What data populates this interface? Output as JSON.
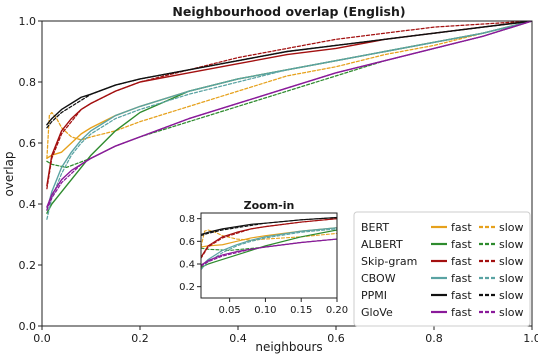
{
  "chart_data": [
    {
      "type": "line",
      "title": "Neighbourhood overlap (English)",
      "xlabel": "neighbours",
      "ylabel": "overlap",
      "xlim": [
        0.0,
        1.0
      ],
      "ylim": [
        0.0,
        1.0
      ],
      "x_ticks": [
        "0.0",
        "0.2",
        "0.4",
        "0.6",
        "0.8",
        "1.0"
      ],
      "y_ticks": [
        "0.0",
        "0.2",
        "0.4",
        "0.6",
        "0.8",
        "1.0"
      ],
      "grid": false,
      "legend_placement": "lower-right",
      "legend_variant_labels": {
        "fast": "fast",
        "slow": "slow"
      },
      "models": [
        {
          "name": "BERT",
          "color": "#e6a11c"
        },
        {
          "name": "ALBERT",
          "color": "#2e8b2e"
        },
        {
          "name": "Skip-gram",
          "color": "#a31010"
        },
        {
          "name": "CBOW",
          "color": "#5aa3a3"
        },
        {
          "name": "PPMI",
          "color": "#111111"
        },
        {
          "name": "GloVe",
          "color": "#8a1a9a"
        }
      ],
      "series": [
        {
          "model": "BERT",
          "variant": "fast",
          "x": [
            0.01,
            0.02,
            0.04,
            0.06,
            0.08,
            0.1,
            0.15,
            0.2,
            0.3,
            0.4,
            0.5,
            0.6,
            0.7,
            0.8,
            0.9,
            1.0
          ],
          "y": [
            0.55,
            0.56,
            0.57,
            0.6,
            0.63,
            0.65,
            0.69,
            0.72,
            0.77,
            0.81,
            0.84,
            0.87,
            0.9,
            0.93,
            0.96,
            1.0
          ]
        },
        {
          "model": "BERT",
          "variant": "slow",
          "x": [
            0.01,
            0.015,
            0.02,
            0.03,
            0.04,
            0.06,
            0.08,
            0.1,
            0.15,
            0.2,
            0.3,
            0.4,
            0.5,
            0.6,
            0.7,
            0.8,
            0.9,
            1.0
          ],
          "y": [
            0.55,
            0.69,
            0.7,
            0.68,
            0.65,
            0.62,
            0.61,
            0.62,
            0.64,
            0.67,
            0.72,
            0.77,
            0.82,
            0.85,
            0.89,
            0.92,
            0.96,
            1.0
          ]
        },
        {
          "model": "ALBERT",
          "variant": "fast",
          "x": [
            0.01,
            0.02,
            0.03,
            0.05,
            0.08,
            0.1,
            0.15,
            0.2,
            0.3,
            0.4,
            0.5,
            0.6,
            0.7,
            0.8,
            0.9,
            1.0
          ],
          "y": [
            0.37,
            0.4,
            0.42,
            0.46,
            0.52,
            0.56,
            0.64,
            0.7,
            0.77,
            0.81,
            0.84,
            0.87,
            0.9,
            0.93,
            0.96,
            1.0
          ]
        },
        {
          "model": "ALBERT",
          "variant": "slow",
          "x": [
            0.01,
            0.02,
            0.05,
            0.1,
            0.15,
            0.2,
            0.3,
            0.4,
            0.5,
            0.6,
            0.7,
            0.8,
            0.9,
            1.0
          ],
          "y": [
            0.54,
            0.53,
            0.52,
            0.55,
            0.59,
            0.62,
            0.67,
            0.72,
            0.77,
            0.82,
            0.87,
            0.91,
            0.95,
            1.0
          ]
        },
        {
          "model": "Skip-gram",
          "variant": "fast",
          "x": [
            0.01,
            0.02,
            0.04,
            0.06,
            0.08,
            0.1,
            0.15,
            0.2,
            0.3,
            0.4,
            0.5,
            0.6,
            0.7,
            0.8,
            0.9,
            1.0
          ],
          "y": [
            0.46,
            0.56,
            0.64,
            0.68,
            0.71,
            0.73,
            0.77,
            0.8,
            0.83,
            0.86,
            0.89,
            0.91,
            0.94,
            0.96,
            0.98,
            1.0
          ]
        },
        {
          "model": "Skip-gram",
          "variant": "slow",
          "x": [
            0.01,
            0.02,
            0.04,
            0.06,
            0.08,
            0.1,
            0.15,
            0.2,
            0.3,
            0.4,
            0.5,
            0.6,
            0.7,
            0.8,
            0.9,
            1.0
          ],
          "y": [
            0.45,
            0.55,
            0.63,
            0.67,
            0.71,
            0.73,
            0.77,
            0.8,
            0.84,
            0.88,
            0.91,
            0.94,
            0.96,
            0.98,
            0.99,
            1.0
          ]
        },
        {
          "model": "CBOW",
          "variant": "fast",
          "x": [
            0.01,
            0.02,
            0.04,
            0.06,
            0.08,
            0.1,
            0.15,
            0.2,
            0.3,
            0.4,
            0.5,
            0.6,
            0.7,
            0.8,
            0.9,
            1.0
          ],
          "y": [
            0.38,
            0.44,
            0.52,
            0.57,
            0.61,
            0.64,
            0.69,
            0.72,
            0.77,
            0.81,
            0.84,
            0.87,
            0.9,
            0.93,
            0.96,
            1.0
          ]
        },
        {
          "model": "CBOW",
          "variant": "slow",
          "x": [
            0.01,
            0.02,
            0.04,
            0.06,
            0.08,
            0.1,
            0.15,
            0.2,
            0.3,
            0.4,
            0.5,
            0.6,
            0.7,
            0.8,
            0.9,
            1.0
          ],
          "y": [
            0.35,
            0.42,
            0.5,
            0.56,
            0.6,
            0.63,
            0.68,
            0.71,
            0.76,
            0.8,
            0.84,
            0.87,
            0.9,
            0.93,
            0.96,
            1.0
          ]
        },
        {
          "model": "PPMI",
          "variant": "fast",
          "x": [
            0.01,
            0.02,
            0.04,
            0.06,
            0.08,
            0.1,
            0.15,
            0.2,
            0.3,
            0.4,
            0.5,
            0.6,
            0.7,
            0.8,
            0.9,
            1.0
          ],
          "y": [
            0.66,
            0.68,
            0.71,
            0.73,
            0.75,
            0.76,
            0.79,
            0.81,
            0.84,
            0.87,
            0.9,
            0.92,
            0.94,
            0.96,
            0.98,
            1.0
          ]
        },
        {
          "model": "PPMI",
          "variant": "slow",
          "x": [
            0.01,
            0.02,
            0.04,
            0.06,
            0.08,
            0.1,
            0.15,
            0.2,
            0.3,
            0.4,
            0.5,
            0.6,
            0.7,
            0.8,
            0.9,
            1.0
          ],
          "y": [
            0.65,
            0.67,
            0.7,
            0.72,
            0.74,
            0.76,
            0.79,
            0.81,
            0.84,
            0.87,
            0.9,
            0.92,
            0.94,
            0.96,
            0.98,
            1.0
          ]
        },
        {
          "model": "GloVe",
          "variant": "fast",
          "x": [
            0.01,
            0.02,
            0.04,
            0.06,
            0.08,
            0.1,
            0.15,
            0.2,
            0.3,
            0.4,
            0.5,
            0.6,
            0.7,
            0.8,
            0.9,
            1.0
          ],
          "y": [
            0.39,
            0.43,
            0.48,
            0.51,
            0.53,
            0.55,
            0.59,
            0.62,
            0.68,
            0.73,
            0.78,
            0.83,
            0.87,
            0.91,
            0.95,
            1.0
          ]
        },
        {
          "model": "GloVe",
          "variant": "slow",
          "x": [
            0.01,
            0.02,
            0.04,
            0.06,
            0.08,
            0.1,
            0.15,
            0.2,
            0.3,
            0.4,
            0.5,
            0.6,
            0.7,
            0.8,
            0.9,
            1.0
          ],
          "y": [
            0.38,
            0.42,
            0.47,
            0.5,
            0.53,
            0.55,
            0.59,
            0.62,
            0.68,
            0.73,
            0.78,
            0.83,
            0.87,
            0.91,
            0.95,
            1.0
          ]
        }
      ]
    },
    {
      "type": "line",
      "title": "Zoom-in",
      "xlabel": "",
      "ylabel": "",
      "xlim": [
        0.01,
        0.2
      ],
      "ylim": [
        0.1,
        0.85
      ],
      "x_ticks": [
        "0.05",
        "0.10",
        "0.15",
        "0.20"
      ],
      "y_ticks": [
        "0.2",
        "0.4",
        "0.6",
        "0.8"
      ],
      "grid": false,
      "series_ref": "same series as the main panel, restricted to x between 0.01 and 0.20"
    }
  ]
}
